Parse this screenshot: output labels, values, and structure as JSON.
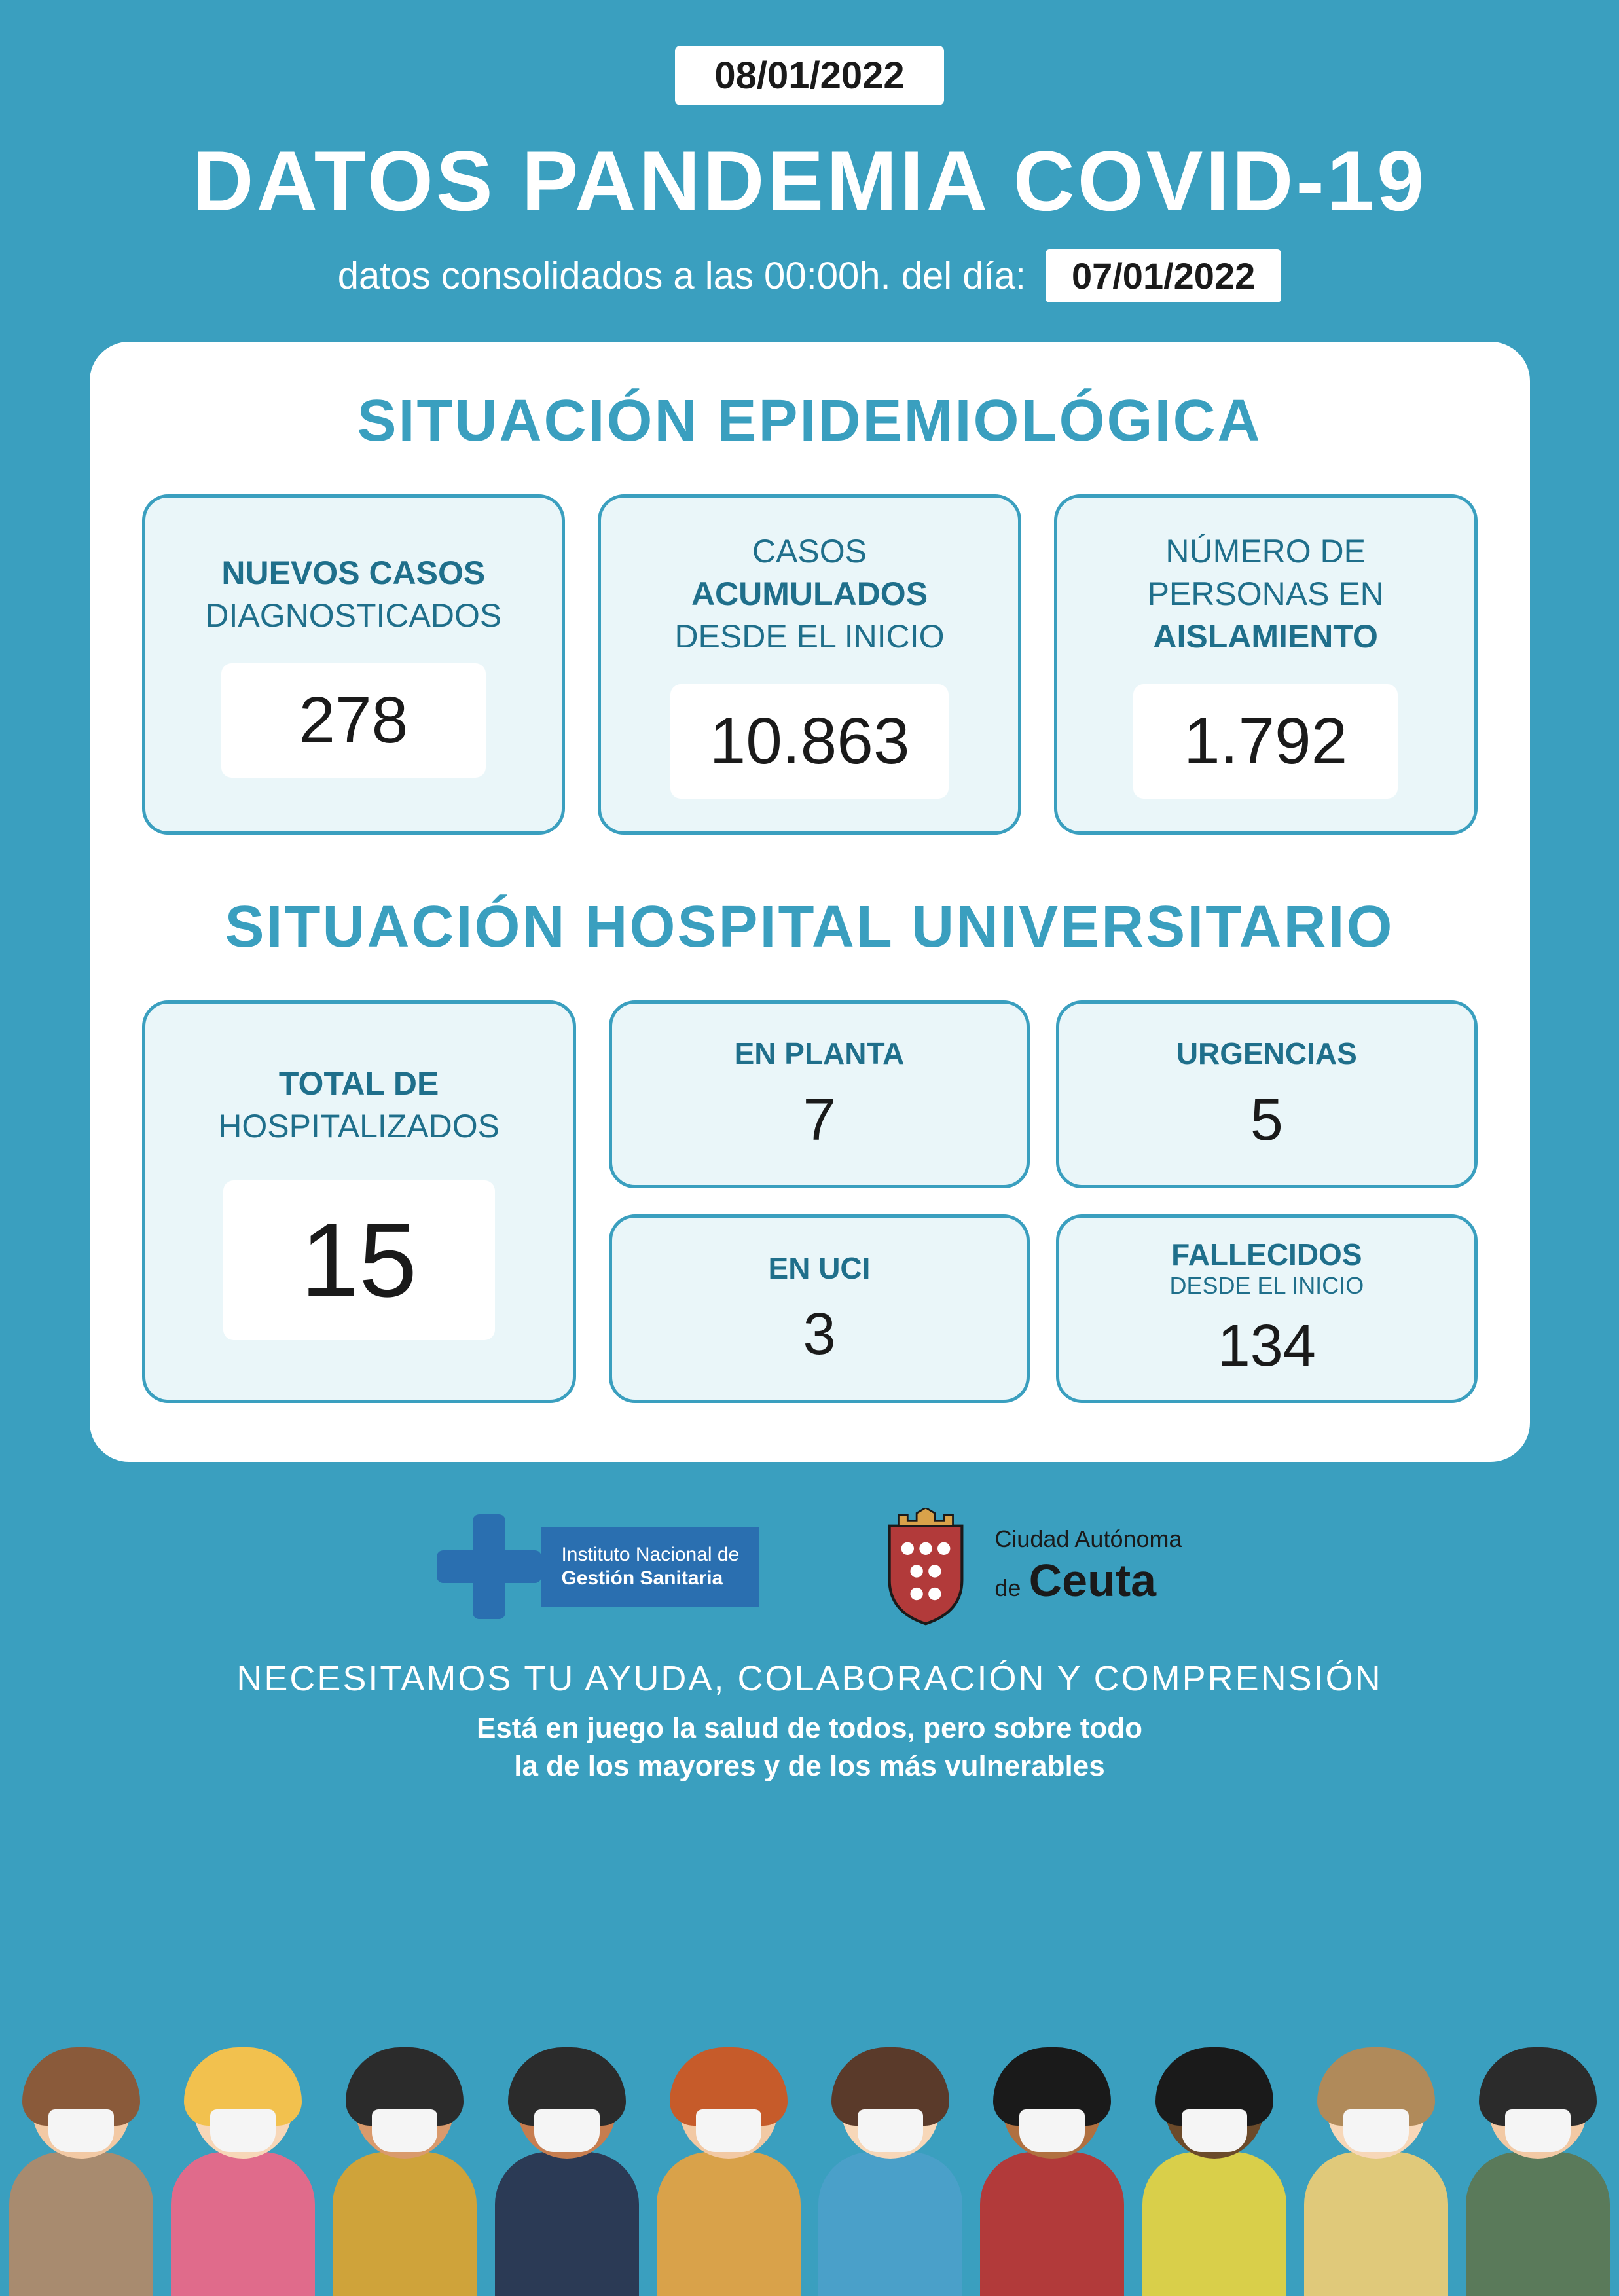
{
  "colors": {
    "background": "#3a9fbf",
    "card_bg": "#ffffff",
    "box_bg": "#eaf6f9",
    "box_border": "#3a9fbf",
    "accent_text": "#1f6f8b",
    "title_text": "#ffffff",
    "value_text": "#1a1a1a"
  },
  "header": {
    "report_date": "08/01/2022",
    "title": "DATOS PANDEMIA COVID-19",
    "subtitle_prefix": "datos consolidados a las 00:00h. del día:",
    "data_date": "07/01/2022"
  },
  "epi": {
    "section_title": "SITUACIÓN EPIDEMIOLÓGICA",
    "boxes": [
      {
        "line1_bold": "NUEVOS CASOS",
        "line2_light": "DIAGNOSTICADOS",
        "value": "278"
      },
      {
        "line0_light": "CASOS",
        "line1_bold": "ACUMULADOS",
        "line2_light": "DESDE EL INICIO",
        "value": "10.863"
      },
      {
        "line0_light": "NÚMERO DE",
        "line1_light": "PERSONAS EN",
        "line2_bold": "AISLAMIENTO",
        "value": "1.792"
      }
    ]
  },
  "hosp": {
    "section_title": "SITUACIÓN HOSPITAL UNIVERSITARIO",
    "total": {
      "line1_bold": "TOTAL DE",
      "line2_light": "HOSPITALIZADOS",
      "value": "15"
    },
    "small": [
      {
        "label": "EN PLANTA",
        "value": "7"
      },
      {
        "label": "URGENCIAS",
        "value": "5"
      },
      {
        "label": "EN UCI",
        "value": "3"
      },
      {
        "label_line1": "FALLECIDOS",
        "label_line2": "DESDE EL INICIO",
        "value": "134"
      }
    ]
  },
  "logos": {
    "ingesa_line1": "Instituto Nacional de",
    "ingesa_line2": "Gestión Sanitaria",
    "ceuta_line1": "Ciudad Autónoma",
    "ceuta_de": "de",
    "ceuta_city": "Ceuta"
  },
  "footer": {
    "line1": "NECESITAMOS TU AYUDA, COLABORACIÓN  Y COMPRENSIÓN",
    "line2": "Está en juego la salud de todos, pero sobre todo",
    "line3": "la de los mayores y de los más vulnerables"
  },
  "people": [
    {
      "skin": "#f2c9a4",
      "hair": "#8a5a3a",
      "shirt": "#a88b6f"
    },
    {
      "skin": "#f7d7b8",
      "hair": "#f2c14e",
      "shirt": "#e06b8b"
    },
    {
      "skin": "#d99a6c",
      "hair": "#2b2b2b",
      "shirt": "#cfa33a"
    },
    {
      "skin": "#c77d4f",
      "hair": "#2b2b2b",
      "shirt": "#2b3a55"
    },
    {
      "skin": "#f2c9a4",
      "hair": "#c65b2a",
      "shirt": "#d9a24a"
    },
    {
      "skin": "#f7d7b8",
      "hair": "#5a3a2a",
      "shirt": "#4aa0c9"
    },
    {
      "skin": "#b07040",
      "hair": "#1a1a1a",
      "shirt": "#b23a3a"
    },
    {
      "skin": "#6b4a2a",
      "hair": "#1a1a1a",
      "shirt": "#d9cf4a"
    },
    {
      "skin": "#f7d7b8",
      "hair": "#b08a5a",
      "shirt": "#e0c97a"
    },
    {
      "skin": "#f2c9a4",
      "hair": "#2b2b2b",
      "shirt": "#5a7a5a"
    }
  ]
}
